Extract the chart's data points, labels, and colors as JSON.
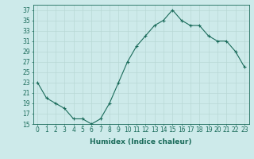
{
  "x": [
    0,
    1,
    2,
    3,
    4,
    5,
    6,
    7,
    8,
    9,
    10,
    11,
    12,
    13,
    14,
    15,
    16,
    17,
    18,
    19,
    20,
    21,
    22,
    23
  ],
  "y": [
    23,
    20,
    19,
    18,
    16,
    16,
    15,
    16,
    19,
    23,
    27,
    30,
    32,
    34,
    35,
    37,
    35,
    34,
    34,
    32,
    31,
    31,
    29,
    26
  ],
  "line_color": "#1a6b5a",
  "marker": "+",
  "marker_size": 3,
  "bg_color": "#cdeaea",
  "grid_color": "#b8d8d5",
  "xlabel": "Humidex (Indice chaleur)",
  "ylim": [
    15,
    38
  ],
  "xlim": [
    -0.5,
    23.5
  ],
  "yticks": [
    15,
    17,
    19,
    21,
    23,
    25,
    27,
    29,
    31,
    33,
    35,
    37
  ],
  "xticks": [
    0,
    1,
    2,
    3,
    4,
    5,
    6,
    7,
    8,
    9,
    10,
    11,
    12,
    13,
    14,
    15,
    16,
    17,
    18,
    19,
    20,
    21,
    22,
    23
  ],
  "tick_label_size": 5.5,
  "xlabel_size": 6.5,
  "linewidth": 0.8,
  "markeredgewidth": 0.8
}
